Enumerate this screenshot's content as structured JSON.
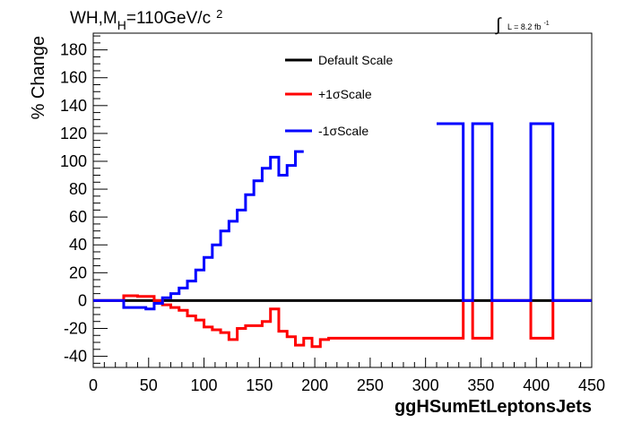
{
  "chart_data": {
    "type": "line",
    "title": "WH,M",
    "title_sub": "H",
    "title_rest": "=110GeV/c",
    "title_sup": "2",
    "lumi_integral": "∫",
    "lumi_text": "L = 8.2 fb",
    "lumi_sup": "-1",
    "xlabel": "ggHSumEtLeptonsJets",
    "ylabel": "% Change",
    "xlim": [
      0,
      450
    ],
    "ylim": [
      -48,
      192
    ],
    "x_ticks": [
      "0",
      "50",
      "100",
      "150",
      "200",
      "250",
      "300",
      "350",
      "400",
      "450"
    ],
    "y_ticks": [
      "-40",
      "-20",
      "0",
      "20",
      "40",
      "60",
      "80",
      "100",
      "120",
      "140",
      "160",
      "180"
    ],
    "legend_position": "top-center",
    "series": [
      {
        "name": "Default Scale",
        "color": "#000000",
        "edges": [
          0,
          450
        ],
        "values": [
          0
        ]
      },
      {
        "name": "+1σScale",
        "color": "#ff0000",
        "edges": [
          0,
          27.5,
          40,
          55,
          62.5,
          70,
          77.5,
          85,
          92.5,
          100,
          107.5,
          115,
          122.5,
          130,
          137.5,
          145,
          152.5,
          160,
          167.5,
          175,
          182.5,
          190,
          197.5,
          205,
          212.5,
          334,
          334.5,
          342.5,
          347,
          360,
          395,
          397,
          413,
          415,
          450
        ],
        "values": [
          0,
          3.5,
          3,
          0,
          -3,
          -5,
          -7,
          -11,
          -14,
          -19,
          -21,
          -23,
          -28,
          -20,
          -18,
          -18,
          -15,
          -6,
          -22,
          -26,
          -32,
          -27,
          -33,
          -28,
          -27,
          0,
          0,
          -27,
          -27,
          0,
          -27,
          -27,
          -27,
          0
        ]
      },
      {
        "name": "-1σScale",
        "color": "#0000ff",
        "edges": [
          0,
          27.5,
          47.5,
          55,
          62.5,
          70,
          77.5,
          85,
          92.5,
          100,
          107.5,
          115,
          122.5,
          130,
          137.5,
          145,
          152.5,
          160,
          167.5,
          175,
          182.5,
          190
        ],
        "values": [
          0,
          -5,
          -6,
          -2,
          2,
          5,
          9,
          14,
          22,
          31,
          40,
          50,
          57,
          65,
          76,
          86,
          95,
          103,
          90,
          97,
          107
        ],
        "extra": {
          "edges": [
            310,
            334,
            342.5,
            360,
            395,
            415,
            450
          ],
          "values": [
            127,
            0,
            127,
            0,
            127,
            0
          ]
        }
      }
    ]
  }
}
